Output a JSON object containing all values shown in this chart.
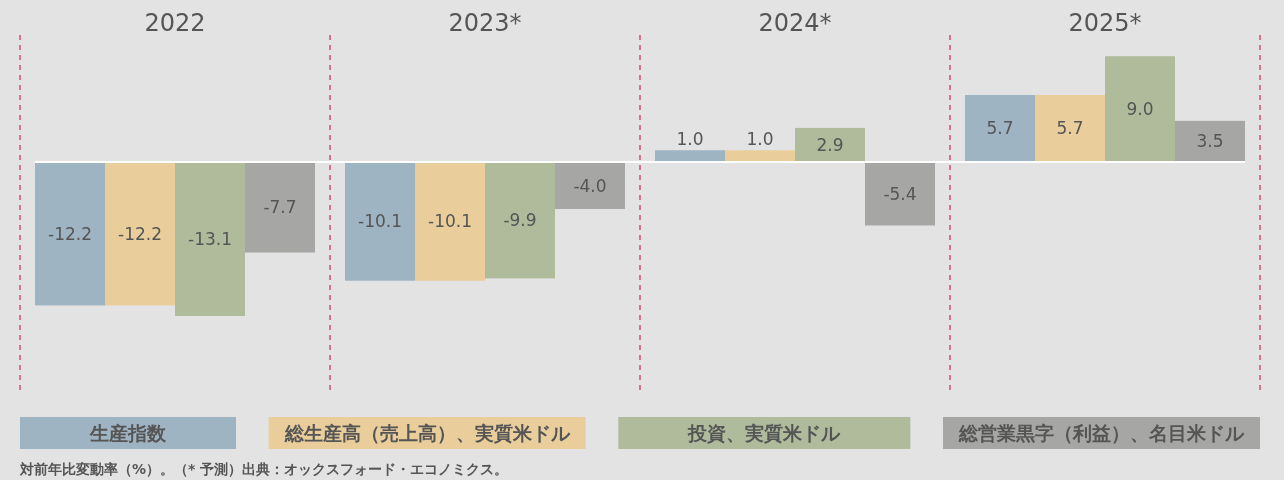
{
  "chart_data": {
    "type": "bar",
    "categories": [
      "2022",
      "2023*",
      "2024*",
      "2025*"
    ],
    "series": [
      {
        "name": "生産指数",
        "color": "#9fb4c2",
        "values": [
          -12.2,
          -10.1,
          1.0,
          5.7
        ],
        "value_labels": [
          "-12.2",
          "-10.1",
          "1.0",
          "5.7"
        ]
      },
      {
        "name": "総生産高（売上高）、実質米ドル",
        "color": "#e9ce9c",
        "values": [
          -12.2,
          -10.1,
          1.0,
          5.7
        ],
        "value_labels": [
          "-12.2",
          "-10.1",
          "1.0",
          "5.7"
        ]
      },
      {
        "name": "投資、実質米ドル",
        "color": "#b0bb9c",
        "values": [
          -13.1,
          -9.9,
          2.9,
          9.0
        ],
        "value_labels": [
          "-13.1",
          "-9.9",
          "2.9",
          "9.0"
        ]
      },
      {
        "name": "総営業黒字（利益）、名目米ドル",
        "color": "#a6a6a5",
        "values": [
          -7.7,
          -4.0,
          -5.4,
          3.5
        ],
        "value_labels": [
          "-7.7",
          "-4.0",
          "-5.4",
          "3.5"
        ]
      }
    ],
    "legend": "bottom",
    "annotations": [
      "対前年比変動率（%）。（* 予測）出典：オックスフォード・エコノミクス。"
    ]
  }
}
